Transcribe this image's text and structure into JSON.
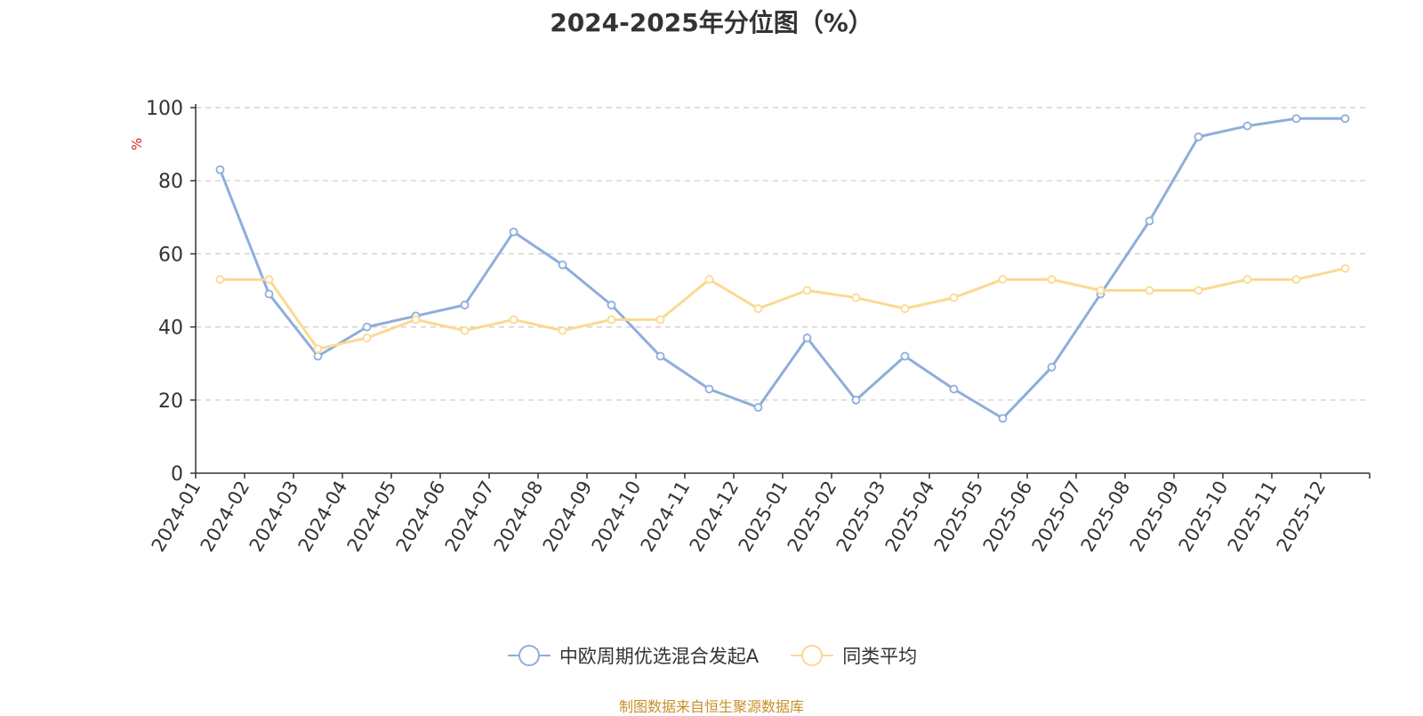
{
  "chart_data": {
    "type": "line",
    "title": "2024-2025年分位图（%）",
    "ylabel": "%",
    "xlabel": "",
    "ylim": [
      0,
      100
    ],
    "yticks": [
      0,
      20,
      40,
      60,
      80,
      100
    ],
    "grid": true,
    "legend_position": "bottom",
    "categories": [
      "2024-01",
      "2024-02",
      "2024-03",
      "2024-04",
      "2024-05",
      "2024-06",
      "2024-07",
      "2024-08",
      "2024-09",
      "2024-10",
      "2024-11",
      "2024-12",
      "2025-01",
      "2025-02",
      "2025-03",
      "2025-04",
      "2025-05",
      "2025-06",
      "2025-07",
      "2025-08",
      "2025-09",
      "2025-10",
      "2025-11",
      "2025-12"
    ],
    "series": [
      {
        "name": "中欧周期优选混合发起A",
        "color": "#8eaedb",
        "values": [
          83,
          49,
          32,
          40,
          43,
          46,
          66,
          57,
          46,
          32,
          23,
          18,
          37,
          20,
          32,
          23,
          15,
          29,
          49,
          69,
          92,
          95,
          97,
          97
        ]
      },
      {
        "name": "同类平均",
        "color": "#fbd992",
        "values": [
          53,
          53,
          34,
          37,
          42,
          39,
          42,
          39,
          42,
          42,
          53,
          45,
          50,
          48,
          45,
          48,
          53,
          53,
          50,
          50,
          50,
          53,
          53,
          56
        ]
      }
    ]
  },
  "source": "制图数据来自恒生聚源数据库",
  "colors": {
    "ylabel": "#e0201a",
    "source": "#c8902a",
    "grid": "#cccccc",
    "axis": "#333333"
  }
}
